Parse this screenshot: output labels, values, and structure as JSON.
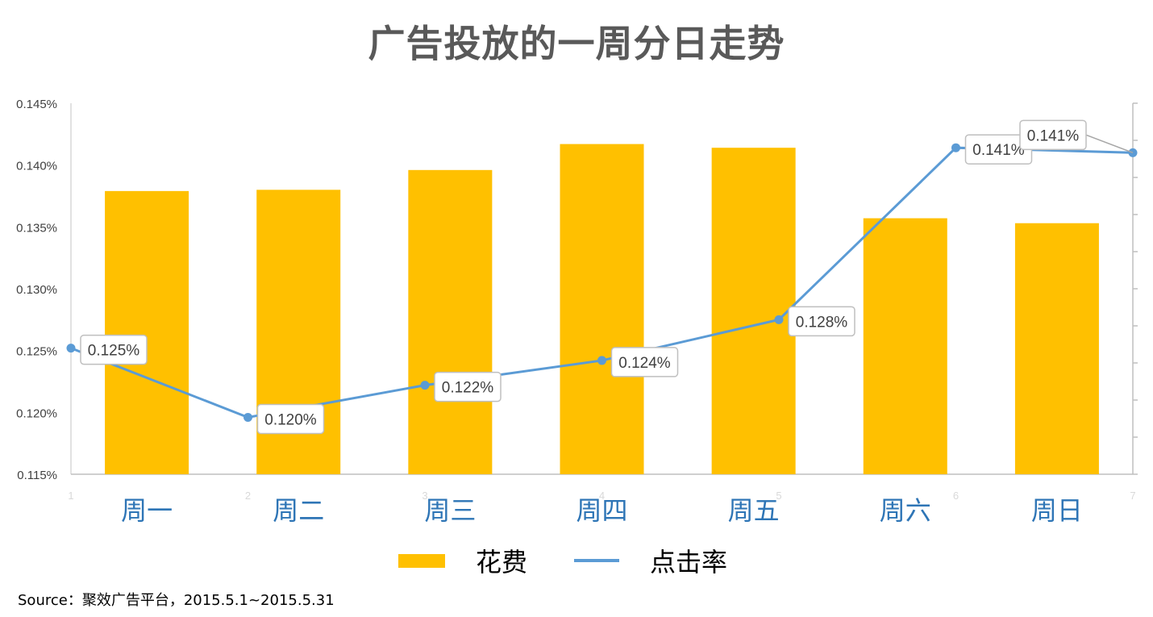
{
  "title": "广告投放的一周分日走势",
  "source": "Source：聚效广告平台，2015.5.1~2015.5.31",
  "colors": {
    "bar": "#FFC000",
    "line": "#5B9BD5",
    "title": "#595959",
    "category_label": "#2E75B6"
  },
  "chart_data": {
    "type": "bar",
    "title": "广告投放的一周分日走势",
    "categories": [
      "周一",
      "周二",
      "周三",
      "周四",
      "周五",
      "周六",
      "周日"
    ],
    "secondary_x_ticks": [
      "1",
      "2",
      "3",
      "4",
      "5",
      "6",
      "7"
    ],
    "series": [
      {
        "name": "花费",
        "type": "bar",
        "axis": "secondary-unlabeled",
        "values": [
          0.1379,
          0.138,
          0.1396,
          0.1417,
          0.1414,
          0.1357,
          0.1353
        ]
      },
      {
        "name": "点击率",
        "type": "line",
        "axis": "primary",
        "values": [
          0.1252,
          0.1196,
          0.1222,
          0.1242,
          0.1275,
          0.1414,
          0.141
        ],
        "data_labels": [
          "0.125%",
          "0.120%",
          "0.122%",
          "0.124%",
          "0.128%",
          "0.141%",
          "0.141%"
        ]
      }
    ],
    "y_ticks": [
      "0.145%",
      "0.140%",
      "0.135%",
      "0.130%",
      "0.125%",
      "0.120%",
      "0.115%"
    ],
    "ylim": [
      0.115,
      0.145
    ],
    "y_unit": "%",
    "legend_position": "bottom",
    "grid": false
  },
  "legend": [
    {
      "name": "花费",
      "kind": "bar"
    },
    {
      "name": "点击率",
      "kind": "line"
    }
  ]
}
